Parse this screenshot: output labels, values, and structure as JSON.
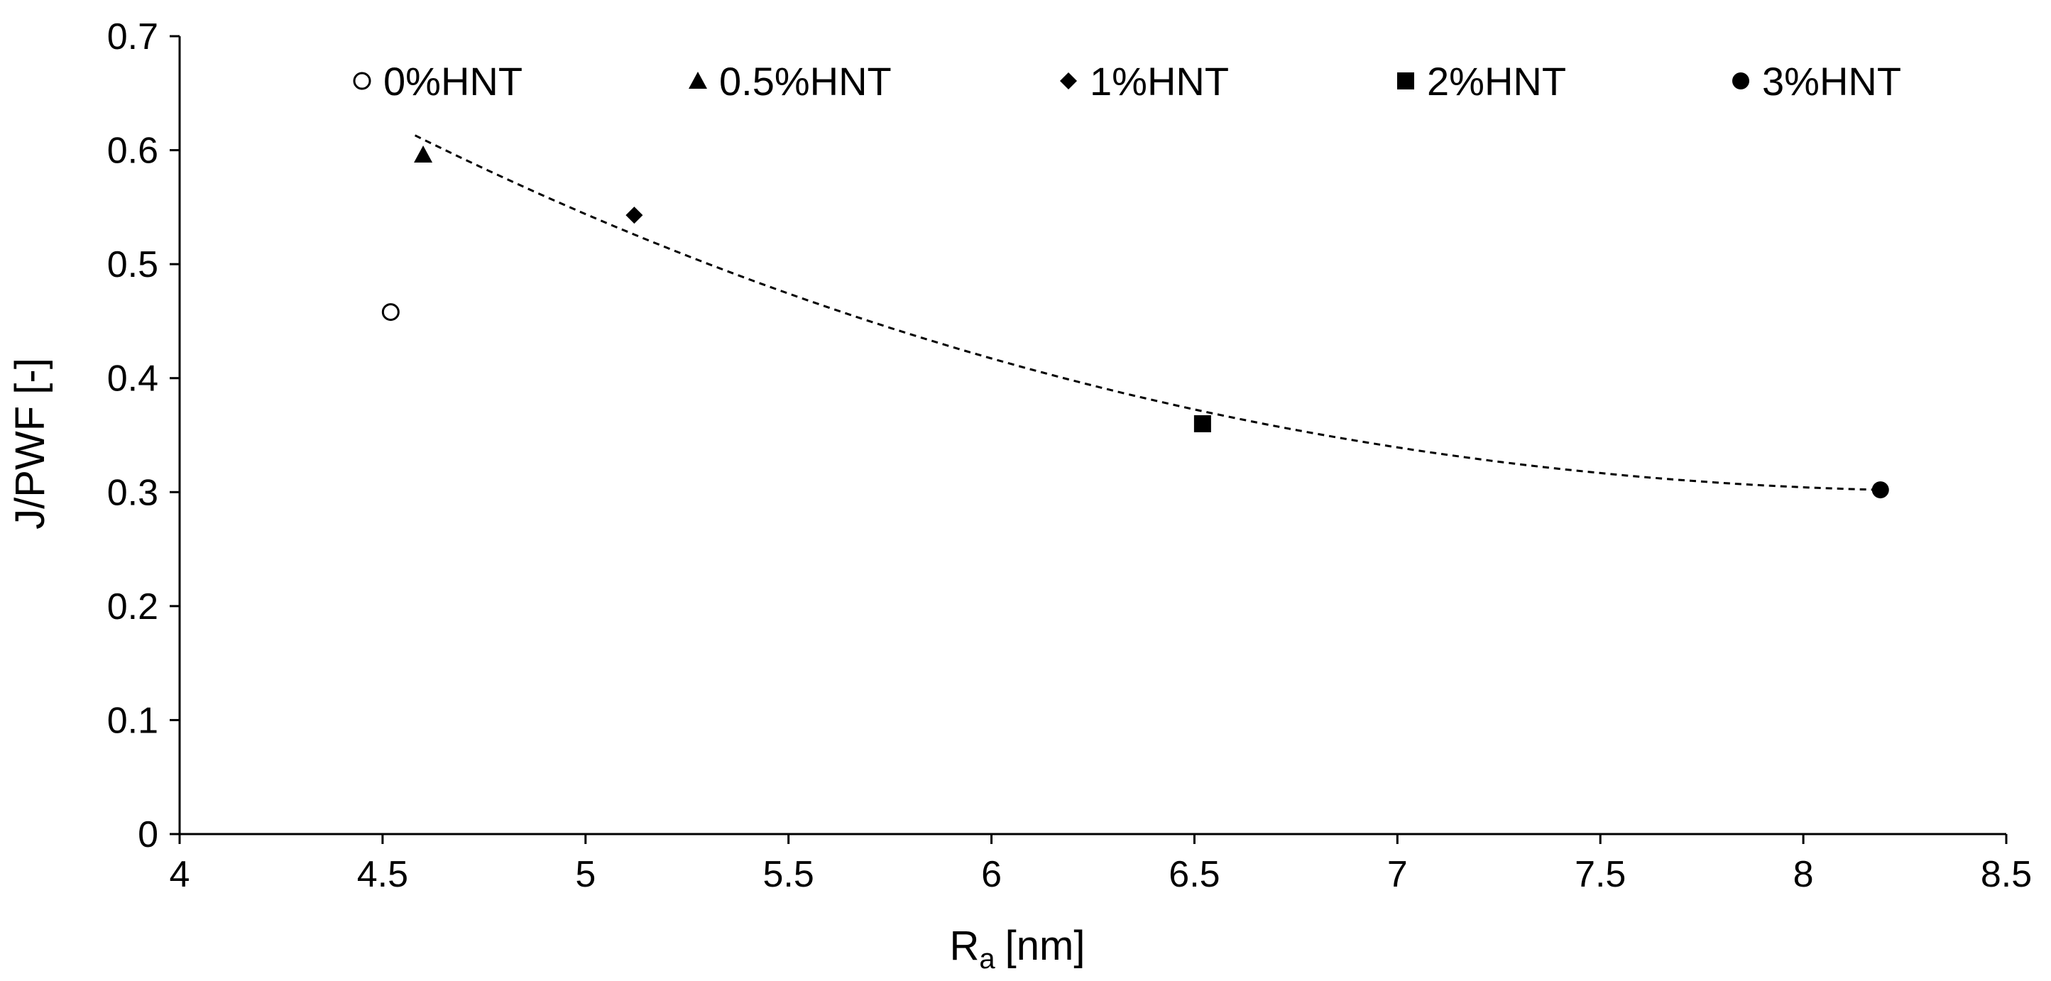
{
  "chart_data": {
    "type": "scatter",
    "title": "",
    "xlabel": "R",
    "xlabel_sub": "a",
    "xlabel_unit": "[nm]",
    "ylabel": "J/PWF [-]",
    "xlim": [
      4,
      8.5
    ],
    "ylim": [
      0,
      0.7
    ],
    "xticks": [
      4,
      4.5,
      5,
      5.5,
      6,
      6.5,
      7,
      7.5,
      8,
      8.5
    ],
    "xtick_labels": [
      "4",
      "4.5",
      "5",
      "5.5",
      "6",
      "6.5",
      "7",
      "7.5",
      "8",
      "8.5"
    ],
    "yticks": [
      0,
      0.1,
      0.2,
      0.3,
      0.4,
      0.5,
      0.6,
      0.7
    ],
    "ytick_labels": [
      "0",
      "0.1",
      "0.2",
      "0.3",
      "0.4",
      "0.5",
      "0.6",
      "0.7"
    ],
    "grid": false,
    "legend_position": "top",
    "series": [
      {
        "name": "0%HNT",
        "marker": "open-circle",
        "x": 4.52,
        "y": 0.458
      },
      {
        "name": "0.5%HNT",
        "marker": "triangle",
        "x": 4.6,
        "y": 0.596
      },
      {
        "name": "1%HNT",
        "marker": "diamond",
        "x": 5.12,
        "y": 0.543
      },
      {
        "name": "2%HNT",
        "marker": "square",
        "x": 6.52,
        "y": 0.36
      },
      {
        "name": "3%HNT",
        "marker": "filled-circle",
        "x": 8.19,
        "y": 0.302
      }
    ],
    "trendline": {
      "type": "polynomial",
      "style": "dashed",
      "x_range": [
        4.58,
        8.19
      ],
      "points": [
        {
          "x": 4.58,
          "y": 0.613
        },
        {
          "x": 5.12,
          "y": 0.526
        },
        {
          "x": 6.52,
          "y": 0.371
        },
        {
          "x": 8.19,
          "y": 0.302
        }
      ]
    }
  },
  "colors": {
    "ink": "#000000",
    "background": "#ffffff"
  }
}
